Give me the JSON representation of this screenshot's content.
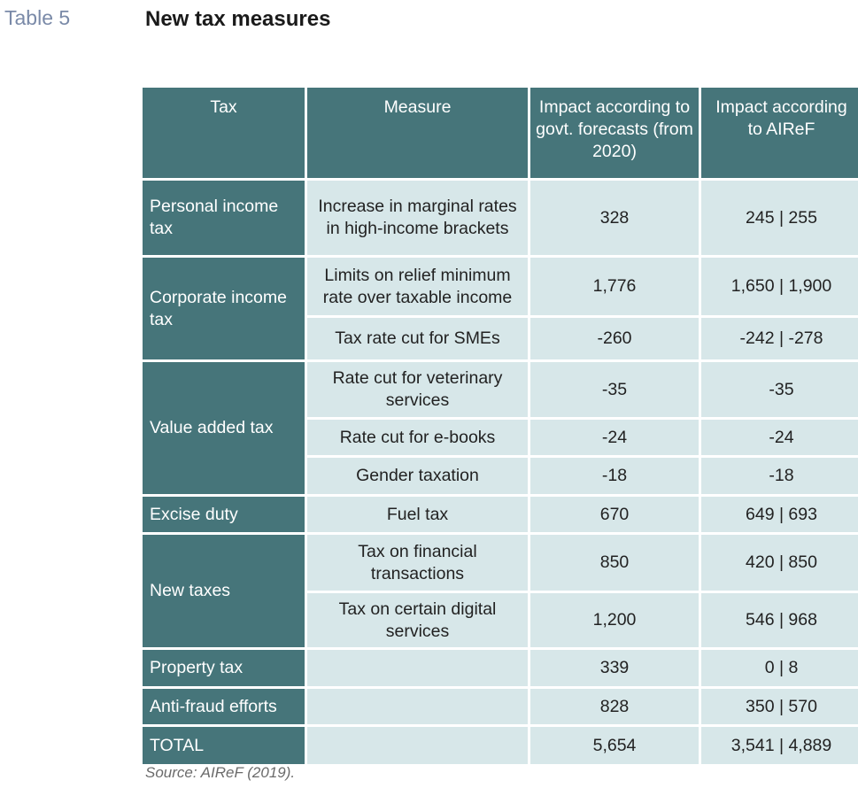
{
  "table_label": "Table 5",
  "title": "New tax measures",
  "columns": {
    "tax": "Tax",
    "measure": "Measure",
    "govt": "Impact according to govt. forecasts (from 2020)",
    "airef": "Impact according to AIReF"
  },
  "rows": [
    {
      "tax": "Personal income tax",
      "measure": "Increase in marginal rates in high-income brackets",
      "govt": "328",
      "airef": "245 | 255"
    },
    {
      "tax": "Corporate income tax",
      "measure": "Limits on relief minimum rate over taxable income",
      "govt": "1,776",
      "airef": "1,650 | 1,900"
    },
    {
      "tax": "",
      "measure": "Tax rate cut for SMEs",
      "govt": "-260",
      "airef": "-242 | -278"
    },
    {
      "tax": "Value added tax",
      "measure": "Rate cut for veterinary services",
      "govt": "-35",
      "airef": "-35"
    },
    {
      "tax": "",
      "measure": "Rate cut for e-books",
      "govt": "-24",
      "airef": "-24"
    },
    {
      "tax": "",
      "measure": "Gender taxation",
      "govt": "-18",
      "airef": "-18"
    },
    {
      "tax": "Excise duty",
      "measure": "Fuel tax",
      "govt": "670",
      "airef": "649 | 693"
    },
    {
      "tax": "New taxes",
      "measure": "Tax on financial transactions",
      "govt": "850",
      "airef": "420 | 850"
    },
    {
      "tax": "",
      "measure": "Tax on certain digital services",
      "govt": "1,200",
      "airef": "546 | 968"
    },
    {
      "tax": "Property tax",
      "measure": "",
      "govt": "339",
      "airef": "0 | 8"
    },
    {
      "tax": "Anti-fraud efforts",
      "measure": "",
      "govt": "828",
      "airef": "350 | 570"
    },
    {
      "tax": "TOTAL",
      "measure": "",
      "govt": "5,654",
      "airef": "3,541 | 4,889"
    }
  ],
  "source": "Source: AIReF (2019).",
  "colors": {
    "header_fill": "#46757a",
    "cell_fill": "#d7e7e9",
    "label_color": "#7a8aa8"
  }
}
